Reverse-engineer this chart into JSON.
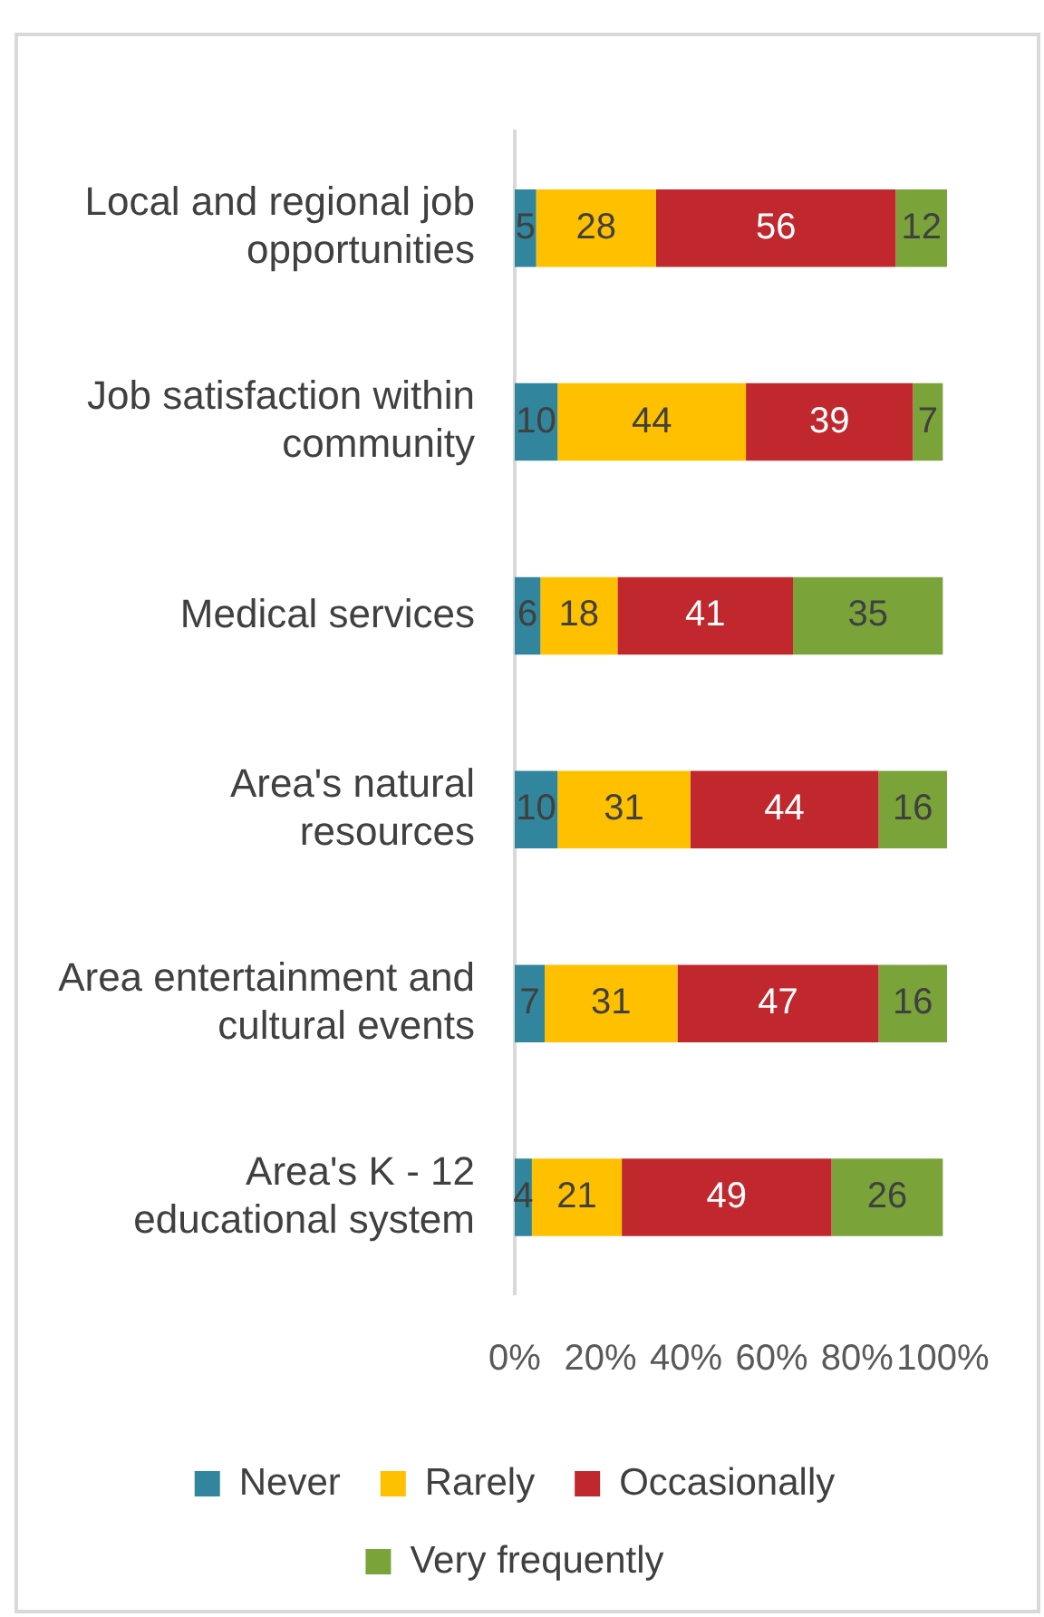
{
  "chart_data": {
    "type": "bar",
    "orientation": "horizontal",
    "stacked": true,
    "data_labels": true,
    "grid": false,
    "legend": "bottom",
    "categories": [
      "Local and regional job opportunities",
      "Job satisfaction within community",
      "Medical services",
      "Area's natural resources",
      "Area entertainment and cultural events",
      "Area's K - 12 educational system"
    ],
    "series": [
      {
        "name": "Never",
        "color": "#31859c",
        "values": [
          5,
          10,
          6,
          10,
          7,
          4
        ]
      },
      {
        "name": "Rarely",
        "color": "#ffc000",
        "values": [
          28,
          44,
          18,
          31,
          31,
          21
        ]
      },
      {
        "name": "Occasionally",
        "color": "#c0282d",
        "values": [
          56,
          39,
          41,
          44,
          47,
          49
        ]
      },
      {
        "name": "Very frequently",
        "color": "#7aa33a",
        "values": [
          12,
          7,
          35,
          16,
          16,
          26
        ]
      }
    ],
    "xlim": [
      0,
      101
    ],
    "xticks": [
      {
        "value": 0,
        "label": "0%"
      },
      {
        "value": 20,
        "label": "20%"
      },
      {
        "value": 40,
        "label": "40%"
      },
      {
        "value": 60,
        "label": "60%"
      },
      {
        "value": 80,
        "label": "80%"
      },
      {
        "value": 100,
        "label": "100%"
      }
    ]
  }
}
